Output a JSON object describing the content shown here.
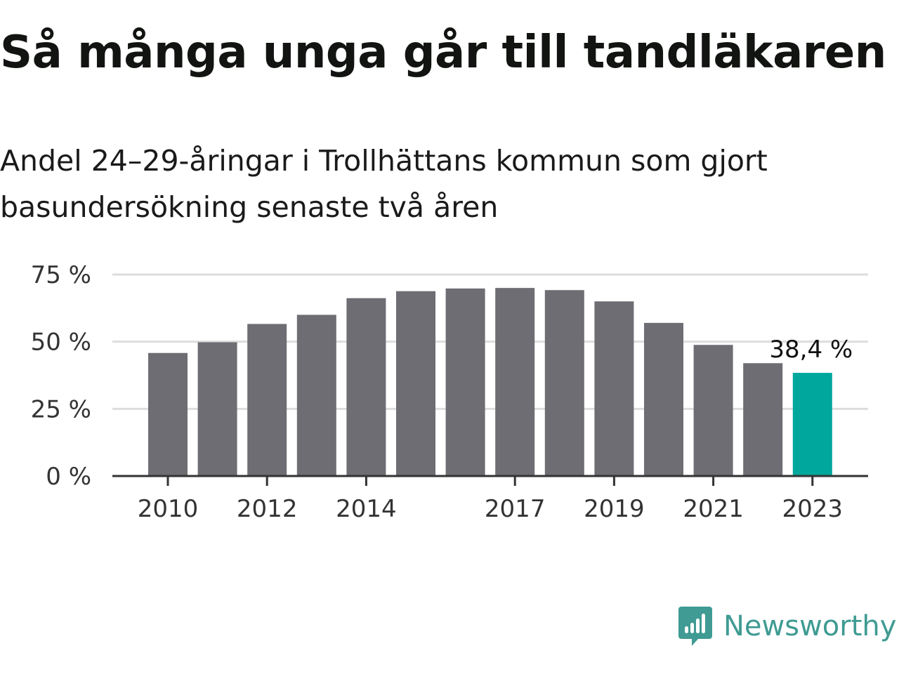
{
  "title": "Så många unga går till tandläkaren",
  "subtitle": "Andel 24–29-åringar i Trollhättans kommun som gjort basundersökning senaste två åren",
  "brand": {
    "name": "Newsworthy",
    "color": "#3f9b93",
    "icon": "bar-chart-speech-bubble-icon"
  },
  "colors": {
    "bar": "#6e6d73",
    "highlight": "#00a79d",
    "grid": "#dddddd",
    "axis": "#333333"
  },
  "chart_data": {
    "type": "bar",
    "title": "Så många unga går till tandläkaren",
    "subtitle": "Andel 24–29-åringar i Trollhättans kommun som gjort basundersökning senaste två åren",
    "xlabel": "",
    "ylabel": "",
    "categories": [
      "2010",
      "2011",
      "2012",
      "2013",
      "2014",
      "2015",
      "2016",
      "2017",
      "2018",
      "2019",
      "2020",
      "2021",
      "2022",
      "2023"
    ],
    "values": [
      45.8,
      49.8,
      56.6,
      60.0,
      66.2,
      68.8,
      69.8,
      70.0,
      69.2,
      65.0,
      57.0,
      48.8,
      42.0,
      38.4
    ],
    "x_tick_labels": [
      "2010",
      "2012",
      "2014",
      "2017",
      "2019",
      "2021",
      "2023"
    ],
    "y_ticks": [
      0,
      25,
      50,
      75
    ],
    "y_tick_labels": [
      "0 %",
      "25 %",
      "50 %",
      "75 %"
    ],
    "ylim": [
      0,
      75
    ],
    "grid": true,
    "highlight_index": 13,
    "annotations": [
      {
        "category": "2023",
        "text": "38,4 %"
      }
    ]
  }
}
